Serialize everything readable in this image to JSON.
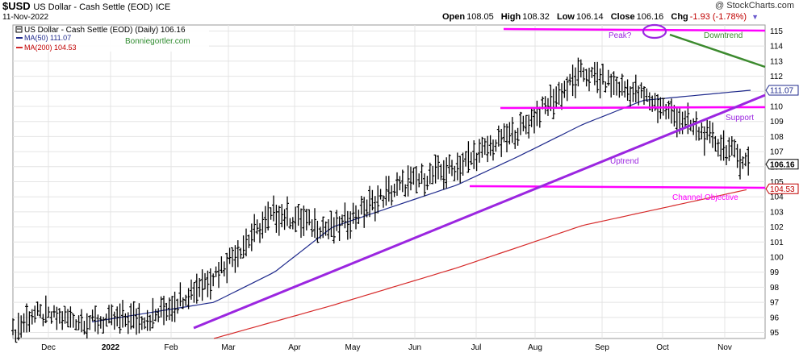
{
  "header": {
    "symbol": "$USD",
    "name": "US Dollar - Cash Settle (EOD)",
    "exchange": "ICE",
    "date": "11-Nov-2022",
    "credit": "@ StockCharts.com",
    "open_label": "Open",
    "open": "108.05",
    "high_label": "High",
    "high": "108.32",
    "low_label": "Low",
    "low": "106.14",
    "close_label": "Close",
    "close": "106.16",
    "chg_label": "Chg",
    "chg": "-1.93 (-1.78%)",
    "chg_arrow": "▼"
  },
  "legend": {
    "main": "US Dollar - Cash Settle (EOD) (Daily) 106.16",
    "ma50": "MA(50) 111.07",
    "ma200": "MA(200) 104.53",
    "watermark": "Bonniegortler.com"
  },
  "chart_data": {
    "type": "ohlc",
    "x_months": [
      "Dec",
      "2022",
      "Feb",
      "Mar",
      "Apr",
      "May",
      "Jun",
      "Jul",
      "Aug",
      "Sep",
      "Oct",
      "Nov"
    ],
    "y_ticks": [
      95,
      96,
      97,
      98,
      99,
      100,
      101,
      102,
      103,
      104,
      105,
      106,
      107,
      108,
      109,
      110,
      111,
      112,
      113,
      114,
      115
    ],
    "ylim": [
      94.6,
      115.4
    ],
    "grid": true,
    "right_labels": [
      {
        "value": 111.07,
        "text": "111.07",
        "color": "#1f2a8c"
      },
      {
        "value": 106.16,
        "text": "106.16",
        "color": "#000000"
      },
      {
        "value": 104.53,
        "text": "104.53",
        "color": "#c00000"
      }
    ],
    "series_price": [
      {
        "month": "Nov-2021",
        "value": 95.0
      },
      {
        "month": "Dec-2021",
        "value": 96.2
      },
      {
        "month": "Jan-2022",
        "value": 95.7
      },
      {
        "month": "Feb-2022",
        "value": 96.0
      },
      {
        "month": "Mar-2022",
        "value": 98.8
      },
      {
        "month": "Apr-2022",
        "value": 102.9
      },
      {
        "month": "May-2022",
        "value": 101.8
      },
      {
        "month": "Jun-2022",
        "value": 104.6
      },
      {
        "month": "Jul-2022",
        "value": 106.0
      },
      {
        "month": "Aug-2022",
        "value": 108.4
      },
      {
        "month": "Sep-2022",
        "value": 112.2
      },
      {
        "month": "Oct-2022",
        "value": 110.7
      },
      {
        "month": "Nov-2022",
        "value": 106.16
      }
    ],
    "series_ma50": [
      {
        "month": "Jan-2022",
        "value": 95.7
      },
      {
        "month": "Mar-2022",
        "value": 97.0
      },
      {
        "month": "Apr-2022",
        "value": 99.0
      },
      {
        "month": "May-2022",
        "value": 102.0
      },
      {
        "month": "Jul-2022",
        "value": 104.8
      },
      {
        "month": "Aug-2022",
        "value": 106.7
      },
      {
        "month": "Sep-2022",
        "value": 108.8
      },
      {
        "month": "Oct-2022",
        "value": 110.4
      },
      {
        "month": "Nov-2022",
        "value": 111.07
      }
    ],
    "series_ma200": [
      {
        "month": "Mar-2022",
        "value": 94.6
      },
      {
        "month": "May-2022",
        "value": 96.8
      },
      {
        "month": "Jul-2022",
        "value": 99.3
      },
      {
        "month": "Sep-2022",
        "value": 102.1
      },
      {
        "month": "Nov-2022",
        "value": 104.53
      }
    ],
    "annotations": {
      "peak": "Peak?",
      "downtrend": "Downtrend",
      "support": "Support",
      "uptrend": "Uptrend",
      "channel": "Channel Objective"
    },
    "colors": {
      "price": "#000000",
      "ma50": "#1f2a8c",
      "ma200": "#d62a2a",
      "magenta": "#ff00ff",
      "purple": "#9b26e0",
      "green": "#3c8a2e",
      "grid": "#e4e4e4"
    }
  }
}
